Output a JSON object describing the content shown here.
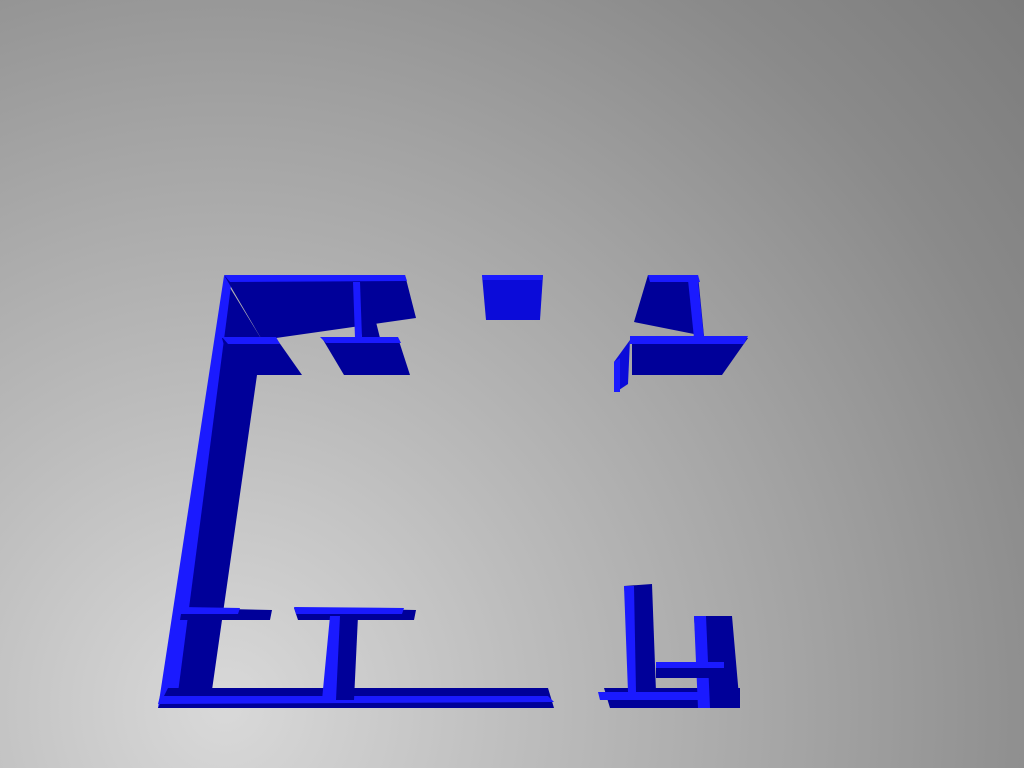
{
  "scene": {
    "kind": "3d-maze-walls",
    "background_center_color": "#d9d9d9",
    "background_edge_color": "#7c7c7c",
    "wall_top_color": "#1a1aff",
    "wall_front_color": "#0b0bd9",
    "wall_side_color": "#000099"
  }
}
